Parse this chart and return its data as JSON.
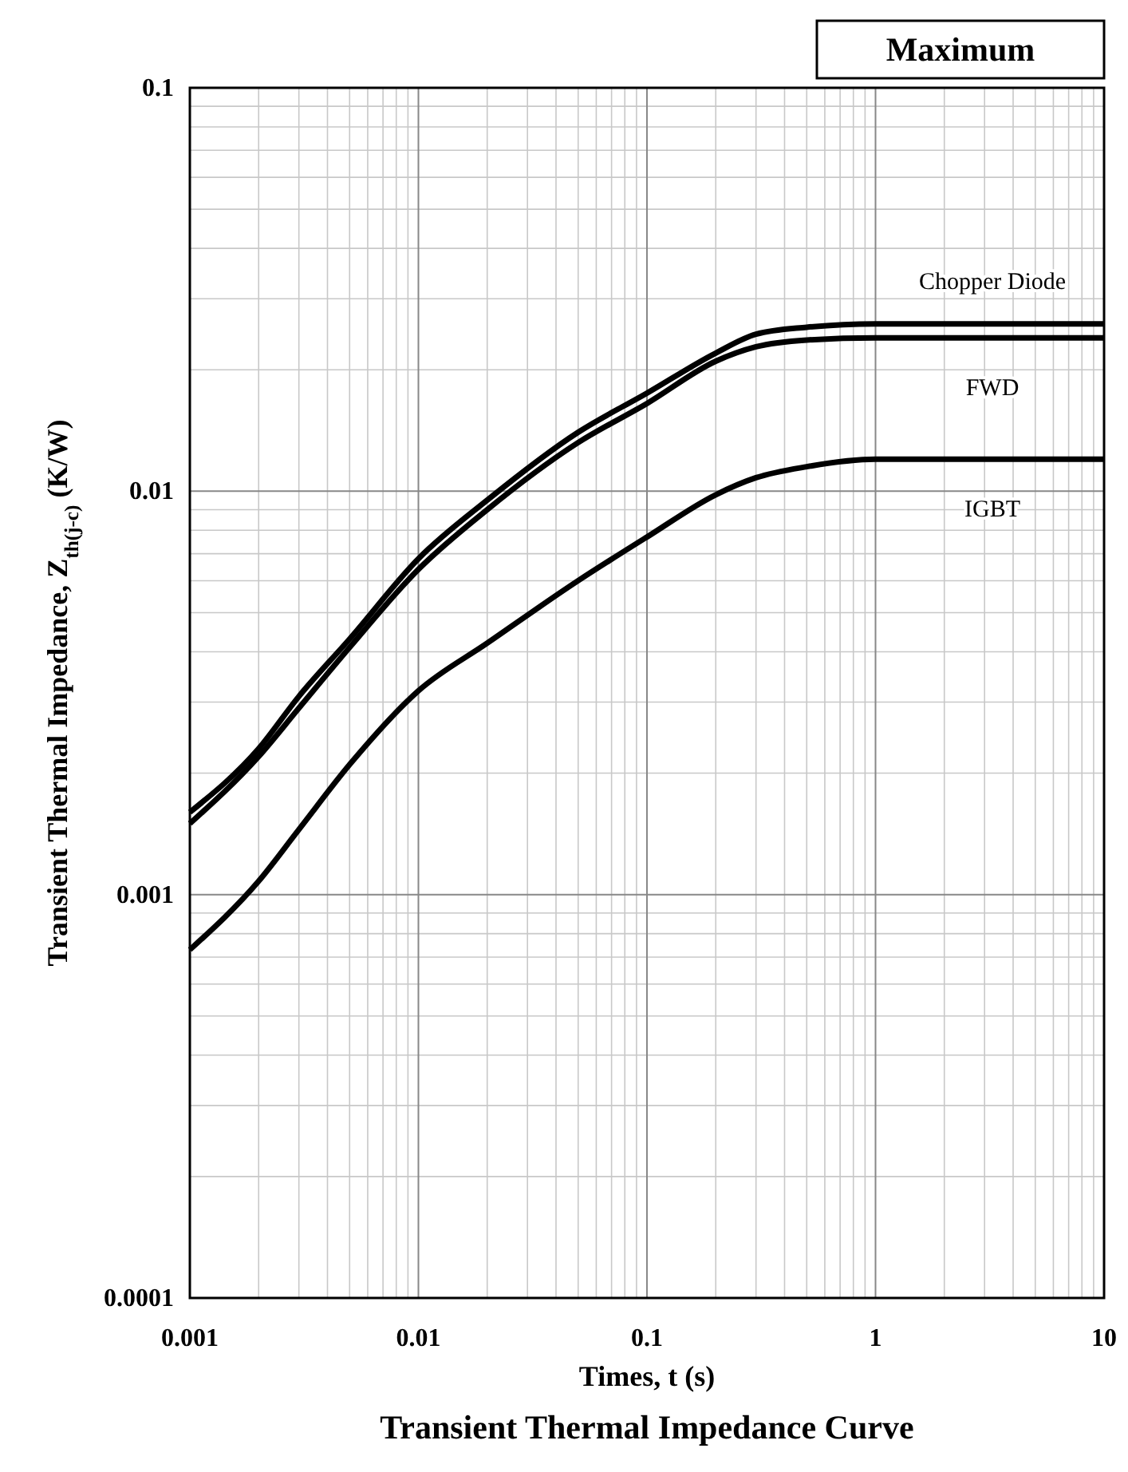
{
  "chart_data": {
    "type": "line",
    "title": "Transient Thermal Impedance Curve",
    "xlabel": "Times, t (s)",
    "ylabel": "Transient Thermal Impedance, Z$_{th(j-c)}$ (K/W)",
    "annotations": [
      "Maximum"
    ],
    "x": [
      0.001,
      0.002,
      0.003,
      0.005,
      0.01,
      0.02,
      0.05,
      0.1,
      0.2,
      0.3,
      0.5,
      1,
      2,
      5,
      10
    ],
    "series": [
      {
        "name": "Chopper Diode",
        "color": "#000000",
        "values": [
          0.0016,
          0.0023,
          0.0031,
          0.0043,
          0.0068,
          0.0095,
          0.014,
          0.0175,
          0.022,
          0.0245,
          0.0255,
          0.026,
          0.026,
          0.026,
          0.026
        ]
      },
      {
        "name": "FWD",
        "color": "#000000",
        "values": [
          0.0015,
          0.0022,
          0.0029,
          0.0041,
          0.0064,
          0.009,
          0.0132,
          0.0165,
          0.021,
          0.0228,
          0.0237,
          0.024,
          0.024,
          0.024,
          0.024
        ]
      },
      {
        "name": "IGBT",
        "color": "#000000",
        "values": [
          0.00073,
          0.00108,
          0.00145,
          0.0021,
          0.0032,
          0.0042,
          0.006,
          0.0077,
          0.0098,
          0.0108,
          0.0115,
          0.012,
          0.012,
          0.012,
          0.012
        ]
      }
    ],
    "log": "xy",
    "xlim": [
      0.001,
      10
    ],
    "ylim": [
      0.0001,
      0.1
    ],
    "xticks": [
      0.001,
      0.01,
      0.1,
      1,
      10
    ],
    "yticks": [
      0.0001,
      0.001,
      0.01,
      0.1
    ],
    "grid": true,
    "legend": false,
    "marker": "none",
    "line_style": "solid"
  }
}
